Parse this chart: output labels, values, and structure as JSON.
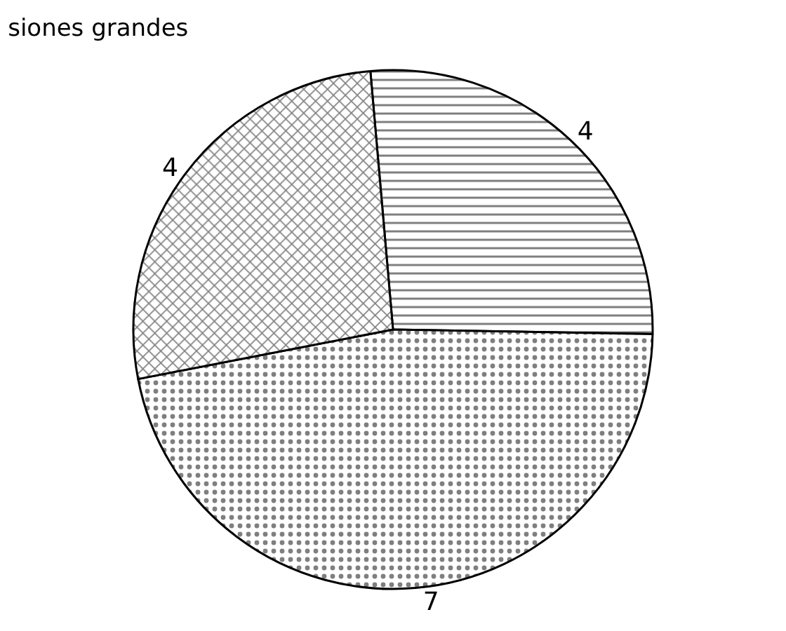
{
  "chart_data": {
    "type": "pie",
    "title": "siones grandes",
    "categories": [
      null,
      null,
      null
    ],
    "values": [
      4,
      7,
      4
    ],
    "colors": [
      "#000000",
      "#000000",
      "#000000"
    ],
    "data_labels": true,
    "legend": false
  }
}
